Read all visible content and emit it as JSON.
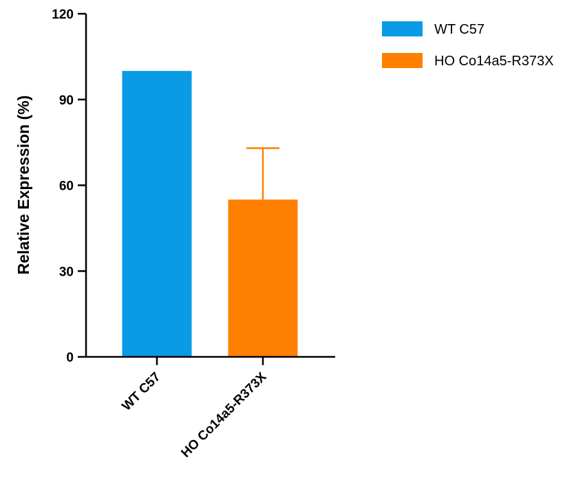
{
  "chart_data": {
    "type": "bar",
    "categories": [
      "WT C57",
      "HO Co14a5-R373X"
    ],
    "values": [
      100,
      55
    ],
    "error_bars": [
      null,
      18
    ],
    "colors": [
      "#0A9BE6",
      "#FF8000"
    ],
    "ylabel": "Relative Expression (%)",
    "xlabel": "",
    "ylim": [
      0,
      120
    ],
    "yticks": [
      "0",
      "30",
      "60",
      "90",
      "120"
    ],
    "legend": {
      "placement": "top-right",
      "entries": [
        {
          "label": "WT C57",
          "color": "#0A9BE6"
        },
        {
          "label": "HO Co14a5-R373X",
          "color": "#FF8000"
        }
      ]
    },
    "grid": false
  }
}
